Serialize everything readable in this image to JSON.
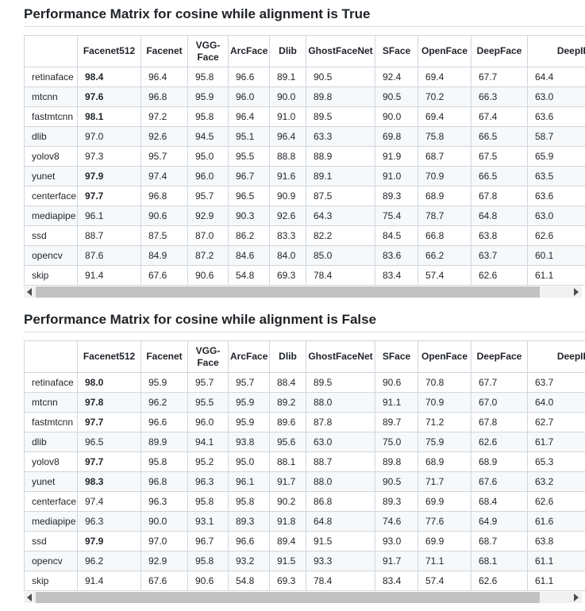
{
  "columns": [
    "",
    "Facenet512",
    "Facenet",
    "VGG-\nFace",
    "ArcFace",
    "Dlib",
    "GhostFaceNet",
    "SFace",
    "OpenFace",
    "DeepFace",
    "DeepID"
  ],
  "colors": {
    "border": "#d0d7de",
    "alt_row": "#f6f8fa",
    "text": "#1f2328",
    "heading_rule": "#d8dee4",
    "scroll_track": "#f1f1f1",
    "scroll_thumb": "#c2c2c2"
  },
  "chart_data": [
    {
      "type": "table",
      "title": "Performance Matrix for cosine while alignment is True",
      "columns": [
        "Facenet512",
        "Facenet",
        "VGG-Face",
        "ArcFace",
        "Dlib",
        "GhostFaceNet",
        "SFace",
        "OpenFace",
        "DeepFace",
        "DeepID"
      ],
      "rows": [
        {
          "label": "retinaface",
          "values": [
            98.4,
            96.4,
            95.8,
            96.6,
            89.1,
            90.5,
            92.4,
            69.4,
            67.7,
            64.4
          ]
        },
        {
          "label": "mtcnn",
          "values": [
            97.6,
            96.8,
            95.9,
            96.0,
            90.0,
            89.8,
            90.5,
            70.2,
            66.3,
            63.0
          ]
        },
        {
          "label": "fastmtcnn",
          "values": [
            98.1,
            97.2,
            95.8,
            96.4,
            91.0,
            89.5,
            90.0,
            69.4,
            67.4,
            63.6
          ]
        },
        {
          "label": "dlib",
          "values": [
            97.0,
            92.6,
            94.5,
            95.1,
            96.4,
            63.3,
            69.8,
            75.8,
            66.5,
            58.7
          ]
        },
        {
          "label": "yolov8",
          "values": [
            97.3,
            95.7,
            95.0,
            95.5,
            88.8,
            88.9,
            91.9,
            68.7,
            67.5,
            65.9
          ]
        },
        {
          "label": "yunet",
          "values": [
            97.9,
            97.4,
            96.0,
            96.7,
            91.6,
            89.1,
            91.0,
            70.9,
            66.5,
            63.5
          ]
        },
        {
          "label": "centerface",
          "values": [
            97.7,
            96.8,
            95.7,
            96.5,
            90.9,
            87.5,
            89.3,
            68.9,
            67.8,
            63.6
          ]
        },
        {
          "label": "mediapipe",
          "values": [
            96.1,
            90.6,
            92.9,
            90.3,
            92.6,
            64.3,
            75.4,
            78.7,
            64.8,
            63.0
          ]
        },
        {
          "label": "ssd",
          "values": [
            88.7,
            87.5,
            87.0,
            86.2,
            83.3,
            82.2,
            84.5,
            66.8,
            63.8,
            62.6
          ]
        },
        {
          "label": "opencv",
          "values": [
            87.6,
            84.9,
            87.2,
            84.6,
            84.0,
            85.0,
            83.6,
            66.2,
            63.7,
            60.1
          ]
        },
        {
          "label": "skip",
          "values": [
            91.4,
            67.6,
            90.6,
            54.8,
            69.3,
            78.4,
            83.4,
            57.4,
            62.6,
            61.1
          ]
        }
      ]
    },
    {
      "type": "table",
      "title": "Performance Matrix for cosine while alignment is False",
      "columns": [
        "Facenet512",
        "Facenet",
        "VGG-Face",
        "ArcFace",
        "Dlib",
        "GhostFaceNet",
        "SFace",
        "OpenFace",
        "DeepFace",
        "DeepID"
      ],
      "rows": [
        {
          "label": "retinaface",
          "values": [
            98.0,
            95.9,
            95.7,
            95.7,
            88.4,
            89.5,
            90.6,
            70.8,
            67.7,
            63.7
          ]
        },
        {
          "label": "mtcnn",
          "values": [
            97.8,
            96.2,
            95.5,
            95.9,
            89.2,
            88.0,
            91.1,
            70.9,
            67.0,
            64.0
          ]
        },
        {
          "label": "fastmtcnn",
          "values": [
            97.7,
            96.6,
            96.0,
            95.9,
            89.6,
            87.8,
            89.7,
            71.2,
            67.8,
            62.7
          ]
        },
        {
          "label": "dlib",
          "values": [
            96.5,
            89.9,
            94.1,
            93.8,
            95.6,
            63.0,
            75.0,
            75.9,
            62.6,
            61.7
          ]
        },
        {
          "label": "yolov8",
          "values": [
            97.7,
            95.8,
            95.2,
            95.0,
            88.1,
            88.7,
            89.8,
            68.9,
            68.9,
            65.3
          ]
        },
        {
          "label": "yunet",
          "values": [
            98.3,
            96.8,
            96.3,
            96.1,
            91.7,
            88.0,
            90.5,
            71.7,
            67.6,
            63.2
          ]
        },
        {
          "label": "centerface",
          "values": [
            97.4,
            96.3,
            95.8,
            95.8,
            90.2,
            86.8,
            89.3,
            69.9,
            68.4,
            62.6
          ]
        },
        {
          "label": "mediapipe",
          "values": [
            96.3,
            90.0,
            93.1,
            89.3,
            91.8,
            64.8,
            74.6,
            77.6,
            64.9,
            61.6
          ]
        },
        {
          "label": "ssd",
          "values": [
            97.9,
            97.0,
            96.7,
            96.6,
            89.4,
            91.5,
            93.0,
            69.9,
            68.7,
            63.8
          ]
        },
        {
          "label": "opencv",
          "values": [
            96.2,
            92.9,
            95.8,
            93.2,
            91.5,
            93.3,
            91.7,
            71.1,
            68.1,
            61.1
          ]
        },
        {
          "label": "skip",
          "values": [
            91.4,
            67.6,
            90.6,
            54.8,
            69.3,
            78.4,
            83.4,
            57.4,
            62.6,
            61.1
          ]
        }
      ]
    }
  ],
  "sections": [
    {
      "title": "Performance Matrix for cosine while alignment is True",
      "rows": [
        {
          "label": "retinaface",
          "values": [
            "98.4",
            "96.4",
            "95.8",
            "96.6",
            "89.1",
            "90.5",
            "92.4",
            "69.4",
            "67.7",
            "64.4"
          ],
          "bold": 0
        },
        {
          "label": "mtcnn",
          "values": [
            "97.6",
            "96.8",
            "95.9",
            "96.0",
            "90.0",
            "89.8",
            "90.5",
            "70.2",
            "66.3",
            "63.0"
          ],
          "bold": 0
        },
        {
          "label": "fastmtcnn",
          "values": [
            "98.1",
            "97.2",
            "95.8",
            "96.4",
            "91.0",
            "89.5",
            "90.0",
            "69.4",
            "67.4",
            "63.6"
          ],
          "bold": 0
        },
        {
          "label": "dlib",
          "values": [
            "97.0",
            "92.6",
            "94.5",
            "95.1",
            "96.4",
            "63.3",
            "69.8",
            "75.8",
            "66.5",
            "58.7"
          ],
          "bold": null
        },
        {
          "label": "yolov8",
          "values": [
            "97.3",
            "95.7",
            "95.0",
            "95.5",
            "88.8",
            "88.9",
            "91.9",
            "68.7",
            "67.5",
            "65.9"
          ],
          "bold": null
        },
        {
          "label": "yunet",
          "values": [
            "97.9",
            "97.4",
            "96.0",
            "96.7",
            "91.6",
            "89.1",
            "91.0",
            "70.9",
            "66.5",
            "63.5"
          ],
          "bold": 0
        },
        {
          "label": "centerface",
          "values": [
            "97.7",
            "96.8",
            "95.7",
            "96.5",
            "90.9",
            "87.5",
            "89.3",
            "68.9",
            "67.8",
            "63.6"
          ],
          "bold": 0
        },
        {
          "label": "mediapipe",
          "values": [
            "96.1",
            "90.6",
            "92.9",
            "90.3",
            "92.6",
            "64.3",
            "75.4",
            "78.7",
            "64.8",
            "63.0"
          ],
          "bold": null
        },
        {
          "label": "ssd",
          "values": [
            "88.7",
            "87.5",
            "87.0",
            "86.2",
            "83.3",
            "82.2",
            "84.5",
            "66.8",
            "63.8",
            "62.6"
          ],
          "bold": null
        },
        {
          "label": "opencv",
          "values": [
            "87.6",
            "84.9",
            "87.2",
            "84.6",
            "84.0",
            "85.0",
            "83.6",
            "66.2",
            "63.7",
            "60.1"
          ],
          "bold": null
        },
        {
          "label": "skip",
          "values": [
            "91.4",
            "67.6",
            "90.6",
            "54.8",
            "69.3",
            "78.4",
            "83.4",
            "57.4",
            "62.6",
            "61.1"
          ],
          "bold": null
        }
      ]
    },
    {
      "title": "Performance Matrix for cosine while alignment is False",
      "rows": [
        {
          "label": "retinaface",
          "values": [
            "98.0",
            "95.9",
            "95.7",
            "95.7",
            "88.4",
            "89.5",
            "90.6",
            "70.8",
            "67.7",
            "63.7"
          ],
          "bold": 0
        },
        {
          "label": "mtcnn",
          "values": [
            "97.8",
            "96.2",
            "95.5",
            "95.9",
            "89.2",
            "88.0",
            "91.1",
            "70.9",
            "67.0",
            "64.0"
          ],
          "bold": 0
        },
        {
          "label": "fastmtcnn",
          "values": [
            "97.7",
            "96.6",
            "96.0",
            "95.9",
            "89.6",
            "87.8",
            "89.7",
            "71.2",
            "67.8",
            "62.7"
          ],
          "bold": 0
        },
        {
          "label": "dlib",
          "values": [
            "96.5",
            "89.9",
            "94.1",
            "93.8",
            "95.6",
            "63.0",
            "75.0",
            "75.9",
            "62.6",
            "61.7"
          ],
          "bold": null
        },
        {
          "label": "yolov8",
          "values": [
            "97.7",
            "95.8",
            "95.2",
            "95.0",
            "88.1",
            "88.7",
            "89.8",
            "68.9",
            "68.9",
            "65.3"
          ],
          "bold": 0
        },
        {
          "label": "yunet",
          "values": [
            "98.3",
            "96.8",
            "96.3",
            "96.1",
            "91.7",
            "88.0",
            "90.5",
            "71.7",
            "67.6",
            "63.2"
          ],
          "bold": 0
        },
        {
          "label": "centerface",
          "values": [
            "97.4",
            "96.3",
            "95.8",
            "95.8",
            "90.2",
            "86.8",
            "89.3",
            "69.9",
            "68.4",
            "62.6"
          ],
          "bold": null
        },
        {
          "label": "mediapipe",
          "values": [
            "96.3",
            "90.0",
            "93.1",
            "89.3",
            "91.8",
            "64.8",
            "74.6",
            "77.6",
            "64.9",
            "61.6"
          ],
          "bold": null
        },
        {
          "label": "ssd",
          "values": [
            "97.9",
            "97.0",
            "96.7",
            "96.6",
            "89.4",
            "91.5",
            "93.0",
            "69.9",
            "68.7",
            "63.8"
          ],
          "bold": 0
        },
        {
          "label": "opencv",
          "values": [
            "96.2",
            "92.9",
            "95.8",
            "93.2",
            "91.5",
            "93.3",
            "91.7",
            "71.1",
            "68.1",
            "61.1"
          ],
          "bold": null
        },
        {
          "label": "skip",
          "values": [
            "91.4",
            "67.6",
            "90.6",
            "54.8",
            "69.3",
            "78.4",
            "83.4",
            "57.4",
            "62.6",
            "61.1"
          ],
          "bold": null
        }
      ]
    }
  ]
}
